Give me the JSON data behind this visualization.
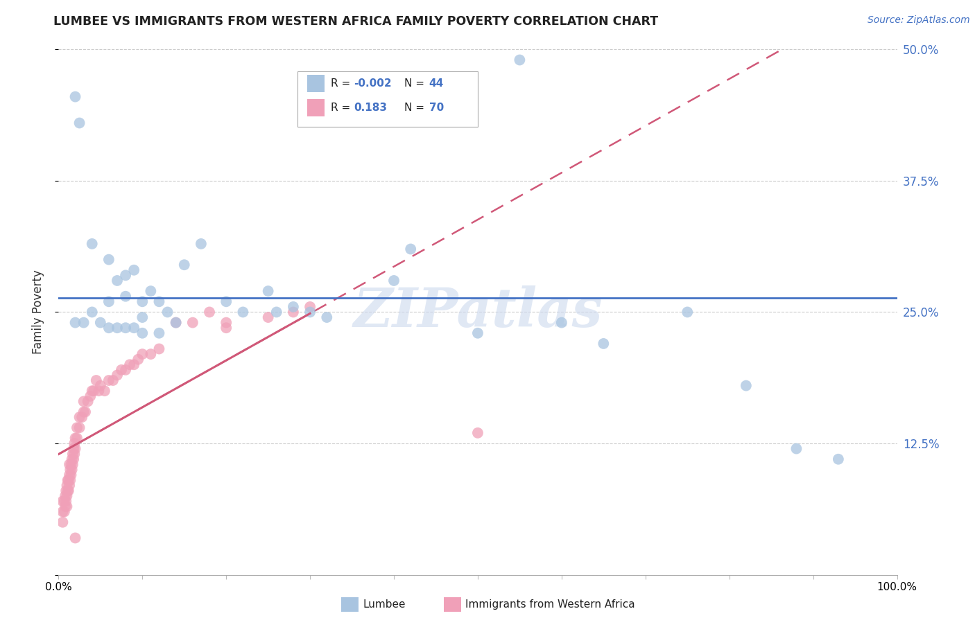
{
  "title": "LUMBEE VS IMMIGRANTS FROM WESTERN AFRICA FAMILY POVERTY CORRELATION CHART",
  "source": "Source: ZipAtlas.com",
  "ylabel": "Family Poverty",
  "xlim": [
    0,
    1.0
  ],
  "ylim": [
    0,
    0.5
  ],
  "yticks": [
    0.0,
    0.125,
    0.25,
    0.375,
    0.5
  ],
  "ytick_labels_right": [
    "",
    "12.5%",
    "25.0%",
    "37.5%",
    "50.0%"
  ],
  "xtick_labels": [
    "0.0%",
    "",
    "",
    "",
    "",
    "",
    "",
    "",
    "",
    "",
    "100.0%"
  ],
  "legend_R1": "-0.002",
  "legend_N1": "44",
  "legend_R2": "0.183",
  "legend_N2": "70",
  "lumbee_color": "#a8c4e0",
  "immigrants_color": "#f0a0b8",
  "trend_lumbee_color": "#4472c4",
  "trend_immigrants_color": "#d05878",
  "watermark": "ZIPatlas",
  "lumbee_x": [
    0.02,
    0.025,
    0.04,
    0.06,
    0.06,
    0.07,
    0.08,
    0.08,
    0.09,
    0.1,
    0.1,
    0.11,
    0.12,
    0.13,
    0.14,
    0.15,
    0.17,
    0.2,
    0.22,
    0.25,
    0.26,
    0.28,
    0.3,
    0.32,
    0.4,
    0.42,
    0.5,
    0.55,
    0.6,
    0.65,
    0.75,
    0.82,
    0.88,
    0.93,
    0.02,
    0.03,
    0.04,
    0.05,
    0.06,
    0.07,
    0.08,
    0.09,
    0.1,
    0.12
  ],
  "lumbee_y": [
    0.455,
    0.43,
    0.315,
    0.3,
    0.26,
    0.28,
    0.285,
    0.265,
    0.29,
    0.26,
    0.245,
    0.27,
    0.26,
    0.25,
    0.24,
    0.295,
    0.315,
    0.26,
    0.25,
    0.27,
    0.25,
    0.255,
    0.25,
    0.245,
    0.28,
    0.31,
    0.23,
    0.49,
    0.24,
    0.22,
    0.25,
    0.18,
    0.12,
    0.11,
    0.24,
    0.24,
    0.25,
    0.24,
    0.235,
    0.235,
    0.235,
    0.235,
    0.23,
    0.23
  ],
  "imm_x": [
    0.005,
    0.005,
    0.005,
    0.007,
    0.007,
    0.008,
    0.008,
    0.009,
    0.009,
    0.01,
    0.01,
    0.01,
    0.011,
    0.011,
    0.012,
    0.012,
    0.013,
    0.013,
    0.013,
    0.014,
    0.014,
    0.015,
    0.015,
    0.016,
    0.016,
    0.017,
    0.017,
    0.018,
    0.018,
    0.019,
    0.019,
    0.02,
    0.02,
    0.022,
    0.022,
    0.025,
    0.025,
    0.028,
    0.03,
    0.03,
    0.032,
    0.035,
    0.038,
    0.04,
    0.042,
    0.045,
    0.048,
    0.05,
    0.055,
    0.06,
    0.065,
    0.07,
    0.075,
    0.08,
    0.085,
    0.09,
    0.095,
    0.1,
    0.11,
    0.12,
    0.14,
    0.16,
    0.18,
    0.2,
    0.25,
    0.28,
    0.3,
    0.5,
    0.2,
    0.02
  ],
  "imm_y": [
    0.05,
    0.06,
    0.07,
    0.06,
    0.07,
    0.065,
    0.075,
    0.07,
    0.08,
    0.065,
    0.075,
    0.085,
    0.08,
    0.09,
    0.08,
    0.09,
    0.085,
    0.095,
    0.105,
    0.09,
    0.1,
    0.095,
    0.105,
    0.1,
    0.11,
    0.105,
    0.115,
    0.11,
    0.12,
    0.115,
    0.125,
    0.12,
    0.13,
    0.13,
    0.14,
    0.14,
    0.15,
    0.15,
    0.155,
    0.165,
    0.155,
    0.165,
    0.17,
    0.175,
    0.175,
    0.185,
    0.175,
    0.18,
    0.175,
    0.185,
    0.185,
    0.19,
    0.195,
    0.195,
    0.2,
    0.2,
    0.205,
    0.21,
    0.21,
    0.215,
    0.24,
    0.24,
    0.25,
    0.24,
    0.245,
    0.25,
    0.255,
    0.135,
    0.235,
    0.035
  ]
}
